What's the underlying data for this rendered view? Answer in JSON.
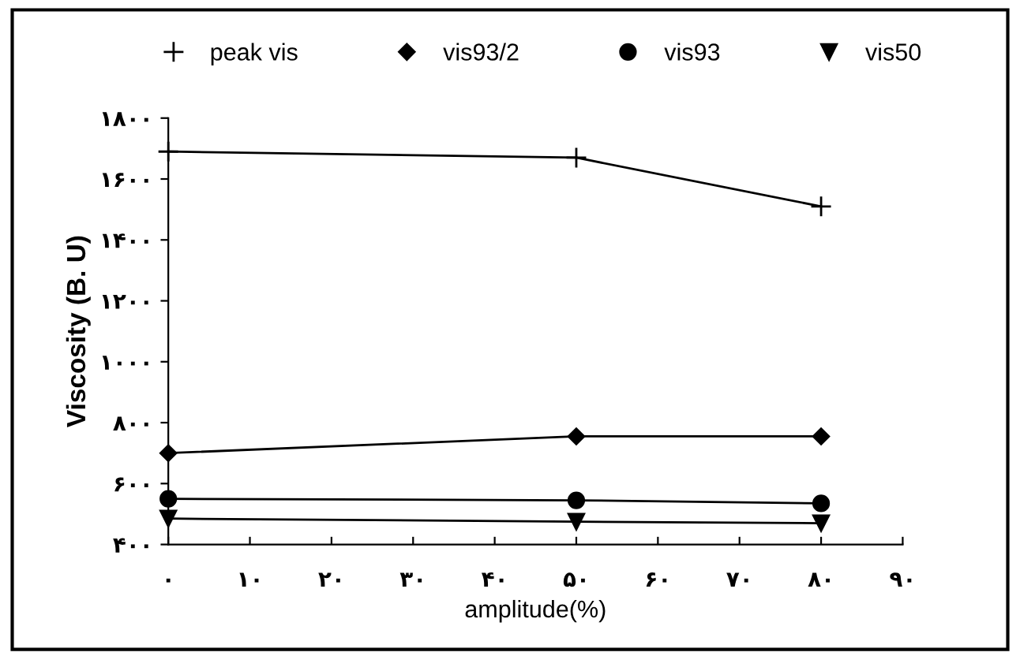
{
  "chart_data": {
    "type": "line",
    "xlabel": "amplitude(%)",
    "ylabel": "Viscosity (B. U)",
    "x": [
      0,
      50,
      80
    ],
    "series": [
      {
        "name": "peak vis",
        "color": "#000000",
        "marker": "cross",
        "values": [
          1690,
          1670,
          1510
        ]
      },
      {
        "name": "vis93/2",
        "color": "#000000",
        "marker": "diamond",
        "values": [
          700,
          755,
          755
        ]
      },
      {
        "name": "vis93",
        "color": "#000000",
        "marker": "circle",
        "values": [
          550,
          545,
          535
        ]
      },
      {
        "name": "vis50",
        "color": "#000000",
        "marker": "triangle",
        "values": [
          485,
          475,
          470
        ]
      }
    ],
    "xlim": [
      0,
      90
    ],
    "xticks": [
      {
        "value": 0,
        "label": "۰"
      },
      {
        "value": 10,
        "label": "۱۰"
      },
      {
        "value": 20,
        "label": "۲۰"
      },
      {
        "value": 30,
        "label": "۳۰"
      },
      {
        "value": 40,
        "label": "۴۰"
      },
      {
        "value": 50,
        "label": "۵۰"
      },
      {
        "value": 60,
        "label": "۶۰"
      },
      {
        "value": 70,
        "label": "۷۰"
      },
      {
        "value": 80,
        "label": "۸۰"
      },
      {
        "value": 90,
        "label": "۹۰"
      }
    ],
    "ylim": [
      400,
      1800
    ],
    "yticks": [
      {
        "value": 400,
        "label": "۴۰۰"
      },
      {
        "value": 600,
        "label": "۶۰۰"
      },
      {
        "value": 800,
        "label": "۸۰۰"
      },
      {
        "value": 1000,
        "label": "۱۰۰۰"
      },
      {
        "value": 1200,
        "label": "۱۲۰۰"
      },
      {
        "value": 1400,
        "label": "۱۴۰۰"
      },
      {
        "value": 1600,
        "label": "۱۶۰۰"
      },
      {
        "value": 1800,
        "label": "۱۸۰۰"
      }
    ],
    "grid": false,
    "legend": "top",
    "line_style": "solid"
  }
}
